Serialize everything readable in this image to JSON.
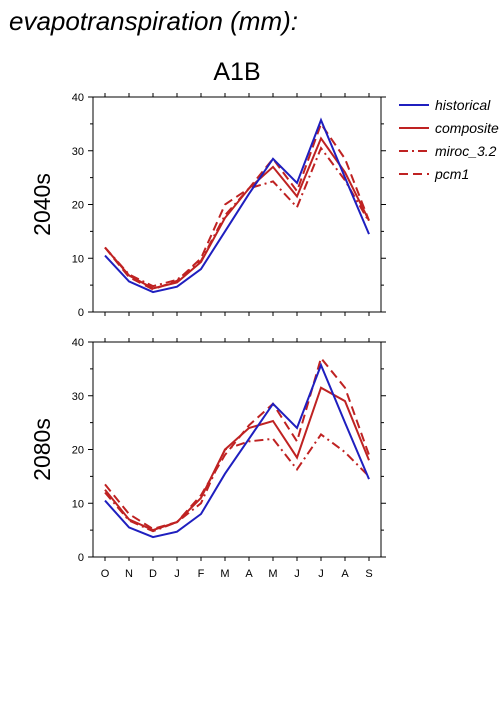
{
  "page_title": "evapotranspiration (mm):",
  "chart_data": {
    "type": "line",
    "title": "A1B",
    "categories": [
      "O",
      "N",
      "D",
      "J",
      "F",
      "M",
      "A",
      "M",
      "J",
      "J",
      "A",
      "S"
    ],
    "ylim": [
      0,
      40
    ],
    "yticks": [
      0,
      10,
      20,
      30,
      40
    ],
    "legend": {
      "placement": "top-right",
      "entries": [
        {
          "label": "historical",
          "color": "#1f1fbf",
          "style": "solid"
        },
        {
          "label": "composite",
          "color": "#bf2222",
          "style": "solid"
        },
        {
          "label": "miroc_3.2",
          "color": "#bf2222",
          "style": "dash-dot"
        },
        {
          "label": "pcm1",
          "color": "#bf2222",
          "style": "dashed"
        }
      ]
    },
    "panels": [
      {
        "ylabel": "2040s",
        "series": [
          {
            "name": "historical",
            "values": [
              10.5,
              5.7,
              3.7,
              4.7,
              8.0,
              15.0,
              22.0,
              28.5,
              24.0,
              35.7,
              25.0,
              14.5
            ]
          },
          {
            "name": "composite",
            "values": [
              12.0,
              6.8,
              4.4,
              5.5,
              9.3,
              17.5,
              23.0,
              27.0,
              21.5,
              32.3,
              26.0,
              17.0
            ]
          },
          {
            "name": "miroc_3.2",
            "values": [
              12.0,
              7.0,
              4.8,
              6.0,
              9.5,
              18.0,
              23.0,
              24.3,
              19.5,
              30.5,
              24.5,
              16.8
            ]
          },
          {
            "name": "pcm1",
            "values": [
              12.0,
              6.5,
              4.2,
              5.8,
              10.0,
              20.0,
              23.0,
              28.5,
              22.5,
              35.0,
              28.5,
              17.0
            ]
          }
        ]
      },
      {
        "ylabel": "2080s",
        "series": [
          {
            "name": "historical",
            "values": [
              10.5,
              5.5,
              3.7,
              4.7,
              8.0,
              15.5,
              22.0,
              28.5,
              24.0,
              35.7,
              25.0,
              14.5
            ]
          },
          {
            "name": "composite",
            "values": [
              12.5,
              7.0,
              5.0,
              6.5,
              11.0,
              20.0,
              24.0,
              25.3,
              18.5,
              31.5,
              29.0,
              18.0
            ]
          },
          {
            "name": "miroc_3.2",
            "values": [
              12.0,
              6.8,
              4.8,
              6.5,
              10.0,
              20.0,
              21.5,
              22.0,
              16.3,
              22.8,
              19.5,
              15.0
            ]
          },
          {
            "name": "pcm1",
            "values": [
              13.5,
              8.0,
              5.2,
              6.5,
              11.5,
              19.0,
              24.5,
              28.5,
              21.5,
              37.0,
              31.5,
              19.0
            ]
          }
        ]
      }
    ]
  }
}
